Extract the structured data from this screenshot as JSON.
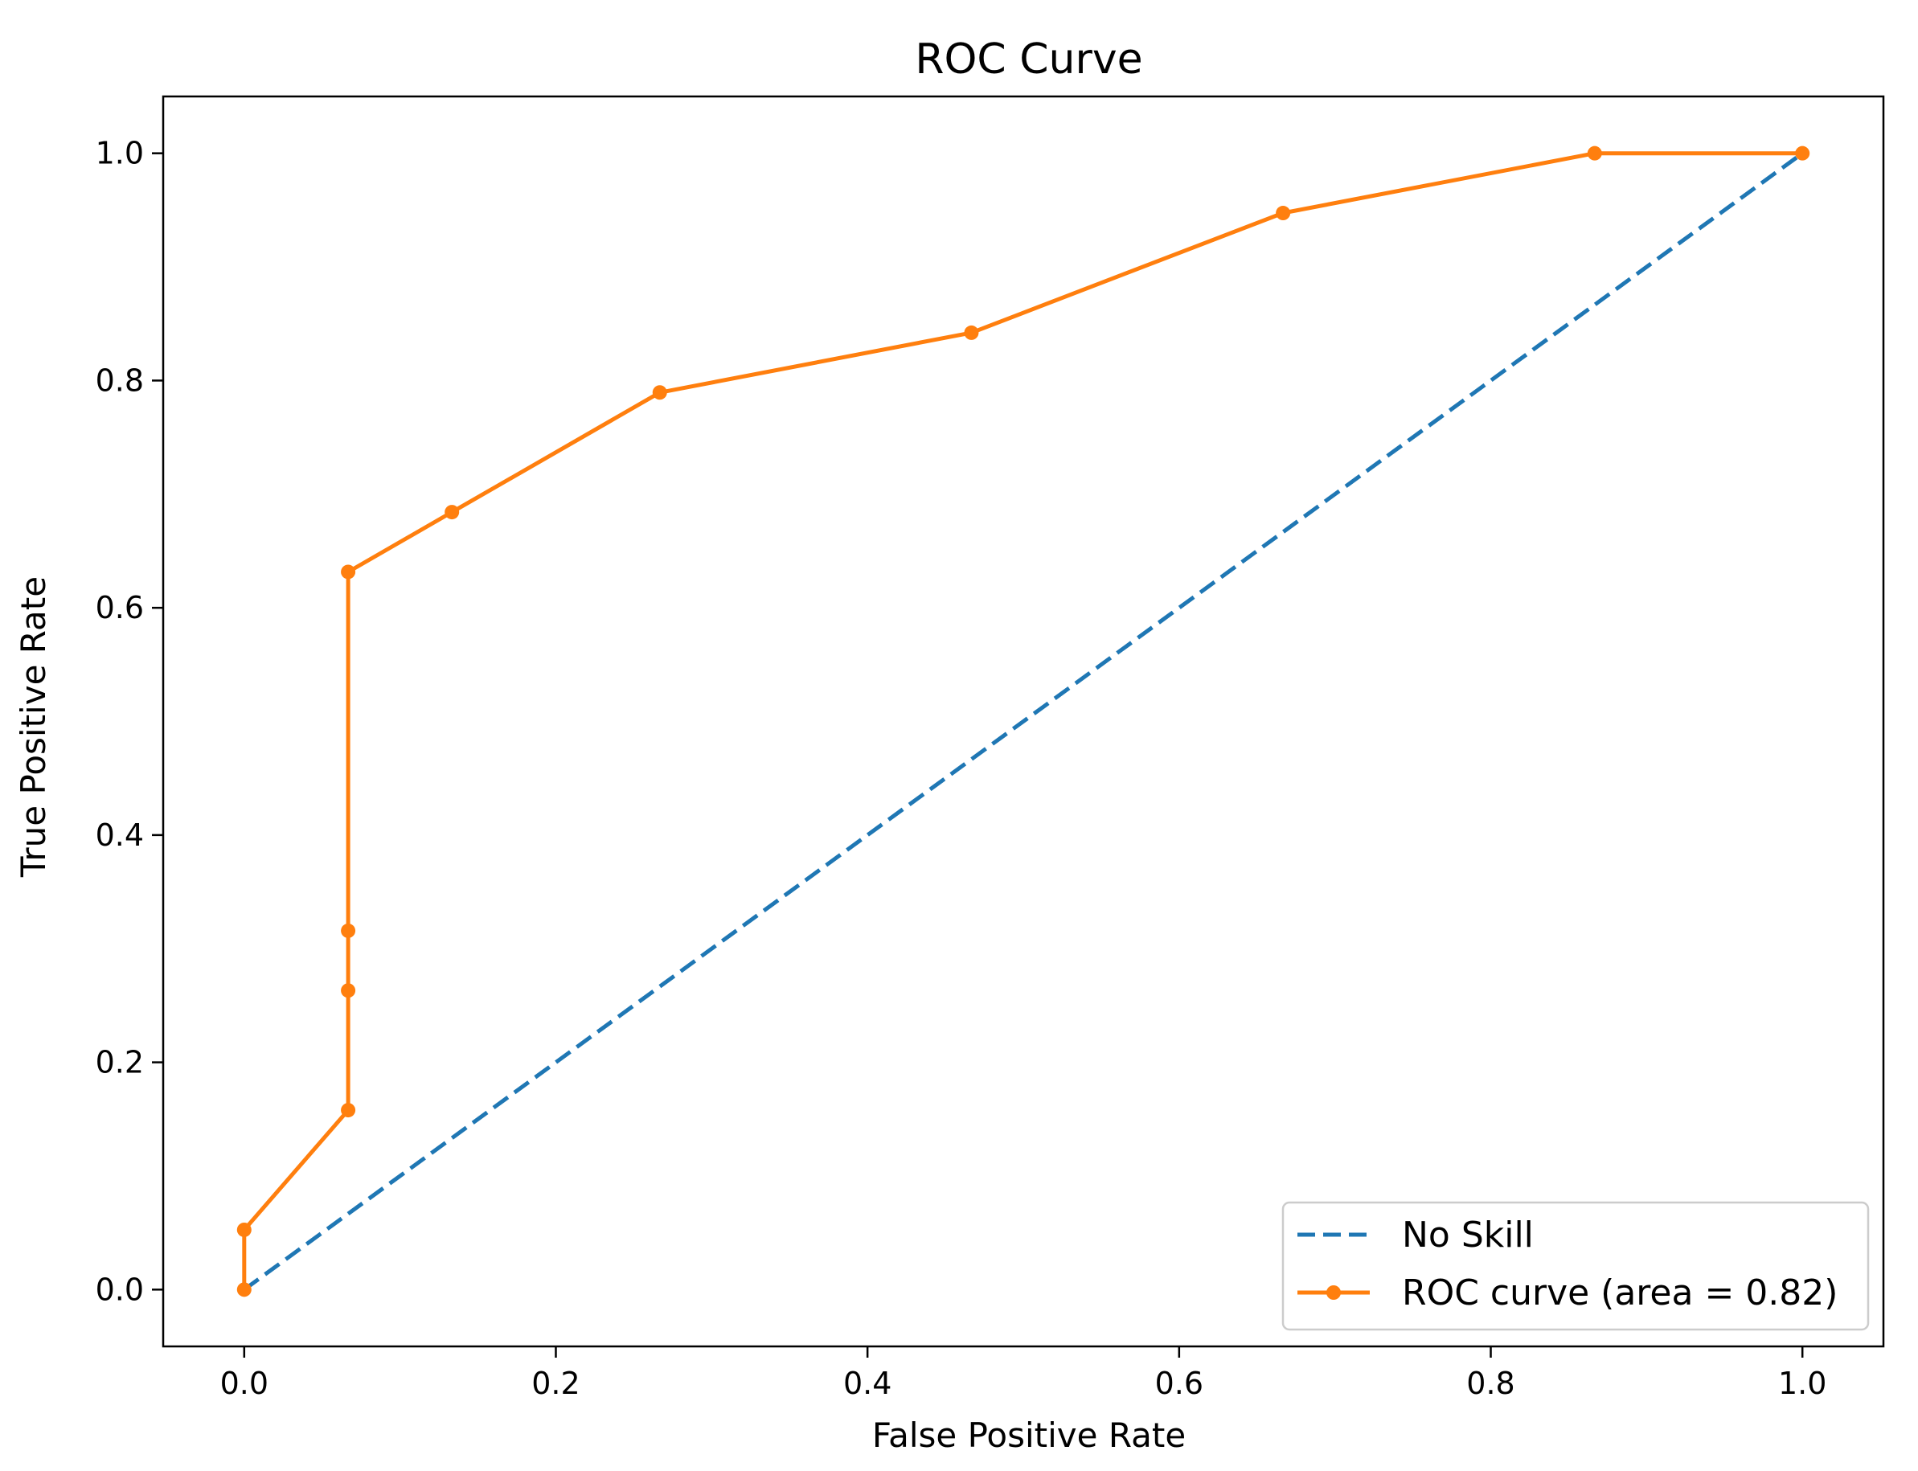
{
  "chart_data": {
    "type": "line",
    "title": "ROC Curve",
    "xlabel": "False Positive Rate",
    "ylabel": "True Positive Rate",
    "xlim": [
      -0.052,
      1.052
    ],
    "ylim": [
      -0.05,
      1.05
    ],
    "xticks": [
      0.0,
      0.2,
      0.4,
      0.6,
      0.8,
      1.0
    ],
    "yticks": [
      0.0,
      0.2,
      0.4,
      0.6,
      0.8,
      1.0
    ],
    "xtick_labels": [
      "0.0",
      "0.2",
      "0.4",
      "0.6",
      "0.8",
      "1.0"
    ],
    "ytick_labels": [
      "0.0",
      "0.2",
      "0.4",
      "0.6",
      "0.8",
      "1.0"
    ],
    "grid": false,
    "legend_position": "lower-right",
    "series": [
      {
        "name": "No Skill",
        "style": "dashed",
        "color": "#1f77b4",
        "markers": false,
        "x": [
          0.0,
          1.0
        ],
        "y": [
          0.0,
          1.0
        ]
      },
      {
        "name": "ROC curve (area = 0.82)",
        "style": "solid",
        "color": "#ff7f0e",
        "markers": true,
        "x": [
          0.0,
          0.0,
          0.0667,
          0.0667,
          0.0667,
          0.0667,
          0.1333,
          0.2667,
          0.4667,
          0.6667,
          0.8667,
          1.0
        ],
        "y": [
          0.0,
          0.0526,
          0.1579,
          0.2632,
          0.3158,
          0.6316,
          0.6842,
          0.7895,
          0.8421,
          0.9474,
          1.0,
          1.0
        ]
      }
    ]
  }
}
